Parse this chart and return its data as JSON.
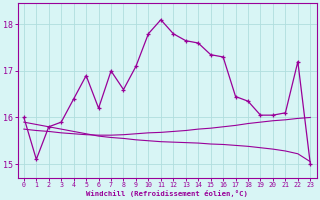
{
  "xlabel": "Windchill (Refroidissement éolien,°C)",
  "x_values": [
    0,
    1,
    2,
    3,
    4,
    5,
    6,
    7,
    8,
    9,
    10,
    11,
    12,
    13,
    14,
    15,
    16,
    17,
    18,
    19,
    20,
    21,
    22,
    23
  ],
  "main_line": [
    16.0,
    15.1,
    15.8,
    15.9,
    16.4,
    16.9,
    16.2,
    17.0,
    16.6,
    17.1,
    17.8,
    18.1,
    17.8,
    17.65,
    17.6,
    17.35,
    17.3,
    16.45,
    16.35,
    16.05,
    16.05,
    16.1,
    17.2,
    15.0
  ],
  "upper_line": [
    15.75,
    15.72,
    15.7,
    15.67,
    15.65,
    15.63,
    15.62,
    15.62,
    15.63,
    15.65,
    15.67,
    15.68,
    15.7,
    15.72,
    15.75,
    15.77,
    15.8,
    15.83,
    15.87,
    15.9,
    15.93,
    15.95,
    15.98,
    16.0
  ],
  "lower_line": [
    15.9,
    15.85,
    15.8,
    15.75,
    15.7,
    15.65,
    15.6,
    15.57,
    15.55,
    15.52,
    15.5,
    15.48,
    15.47,
    15.46,
    15.45,
    15.43,
    15.42,
    15.4,
    15.38,
    15.35,
    15.32,
    15.28,
    15.22,
    15.05
  ],
  "line_color": "#990099",
  "bg_color": "#d8f5f5",
  "grid_color": "#b0dede",
  "ylim_min": 14.7,
  "ylim_max": 18.45,
  "yticks": [
    15,
    16,
    17,
    18
  ],
  "xticks": [
    0,
    1,
    2,
    3,
    4,
    5,
    6,
    7,
    8,
    9,
    10,
    11,
    12,
    13,
    14,
    15,
    16,
    17,
    18,
    19,
    20,
    21,
    22,
    23
  ]
}
